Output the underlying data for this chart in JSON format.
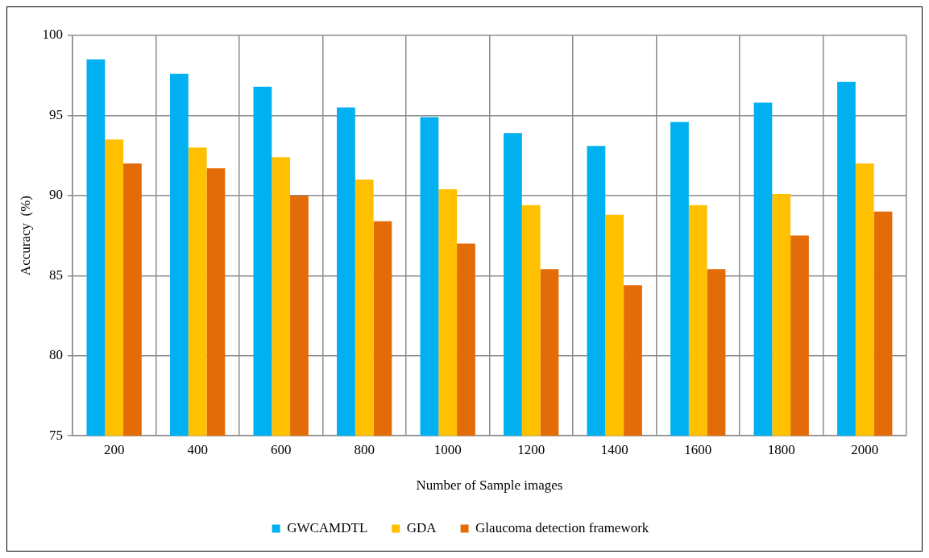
{
  "chart_data": {
    "type": "bar",
    "xlabel": "Number of Sample images",
    "ylabel": "Accuracy  (%)",
    "categories": [
      "200",
      "400",
      "600",
      "800",
      "1000",
      "1200",
      "1400",
      "1600",
      "1800",
      "2000"
    ],
    "series": [
      {
        "name": "GWCAMDTL",
        "color": "#00b0f0",
        "values": [
          98.5,
          97.6,
          96.8,
          95.5,
          94.9,
          93.9,
          93.1,
          94.6,
          95.8,
          97.1
        ]
      },
      {
        "name": "GDA",
        "color": "#ffc000",
        "values": [
          93.5,
          93.0,
          92.4,
          91.0,
          90.4,
          89.4,
          88.8,
          89.4,
          90.1,
          92.0
        ]
      },
      {
        "name": "Glaucoma detection framework",
        "color": "#e36c09",
        "values": [
          92.0,
          91.7,
          90.0,
          88.4,
          87.0,
          85.4,
          84.4,
          85.4,
          87.5,
          89.0
        ]
      }
    ],
    "ylim": [
      75,
      100
    ],
    "yticks": [
      75,
      80,
      85,
      90,
      95,
      100
    ],
    "grid": true,
    "legend": "bottom"
  }
}
